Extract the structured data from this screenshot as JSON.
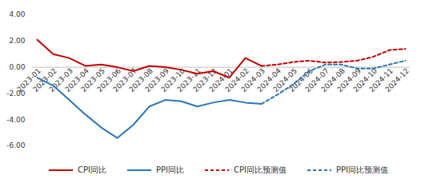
{
  "chart_data": {
    "type": "line",
    "x": [
      "2023-01",
      "2023-02",
      "2023-03",
      "2023-04",
      "2023-05",
      "2023-06",
      "2023-07",
      "2023-08",
      "2023-09",
      "2023-10",
      "2023-11",
      "2023-12",
      "2024-01",
      "2024-02",
      "2024-03",
      "2024-04",
      "2024-05",
      "2024-06",
      "2024-07",
      "2024-08",
      "2024-09",
      "2024-10",
      "2024-11",
      "2024-12"
    ],
    "ylim": [
      -6,
      4
    ],
    "yticks": [
      {
        "value": 4,
        "label": "4.00"
      },
      {
        "value": 2,
        "label": "2.00"
      },
      {
        "value": 0,
        "label": "0.00"
      },
      {
        "value": -2,
        "label": "-2.00"
      },
      {
        "value": -4,
        "label": "-4.00"
      },
      {
        "value": -6,
        "label": "-6.00"
      }
    ],
    "grid": false,
    "legend": "bottom",
    "series": [
      {
        "name": "CPI同比",
        "color": "#c00000",
        "line_style": "solid",
        "values": [
          2.1,
          1.0,
          0.7,
          0.1,
          0.2,
          0.0,
          -0.3,
          0.1,
          0.0,
          -0.2,
          -0.5,
          -0.3,
          -0.8,
          0.7,
          0.1,
          null,
          null,
          null,
          null,
          null,
          null,
          null,
          null,
          null
        ]
      },
      {
        "name": "PPI同比",
        "color": "#2e75b6",
        "line_style": "solid",
        "values": [
          -0.8,
          -1.4,
          -2.5,
          -3.6,
          -4.6,
          -5.4,
          -4.4,
          -3.0,
          -2.5,
          -2.6,
          -3.0,
          -2.7,
          -2.5,
          -2.7,
          -2.8,
          null,
          null,
          null,
          null,
          null,
          null,
          null,
          null,
          null
        ]
      },
      {
        "name": "CPI同比预测值",
        "color": "#c00000",
        "line_style": "dashed",
        "values": [
          null,
          null,
          null,
          null,
          null,
          null,
          null,
          null,
          null,
          null,
          null,
          null,
          null,
          null,
          0.1,
          0.2,
          0.4,
          0.5,
          0.35,
          0.4,
          0.5,
          0.8,
          1.3,
          1.4
        ]
      },
      {
        "name": "PPI同比预测值",
        "color": "#2e75b6",
        "line_style": "dashed",
        "values": [
          null,
          null,
          null,
          null,
          null,
          null,
          null,
          null,
          null,
          null,
          null,
          null,
          null,
          null,
          -2.8,
          -2.1,
          -1.3,
          -0.3,
          0.2,
          0.2,
          -0.1,
          -0.1,
          0.2,
          0.5
        ]
      }
    ]
  }
}
